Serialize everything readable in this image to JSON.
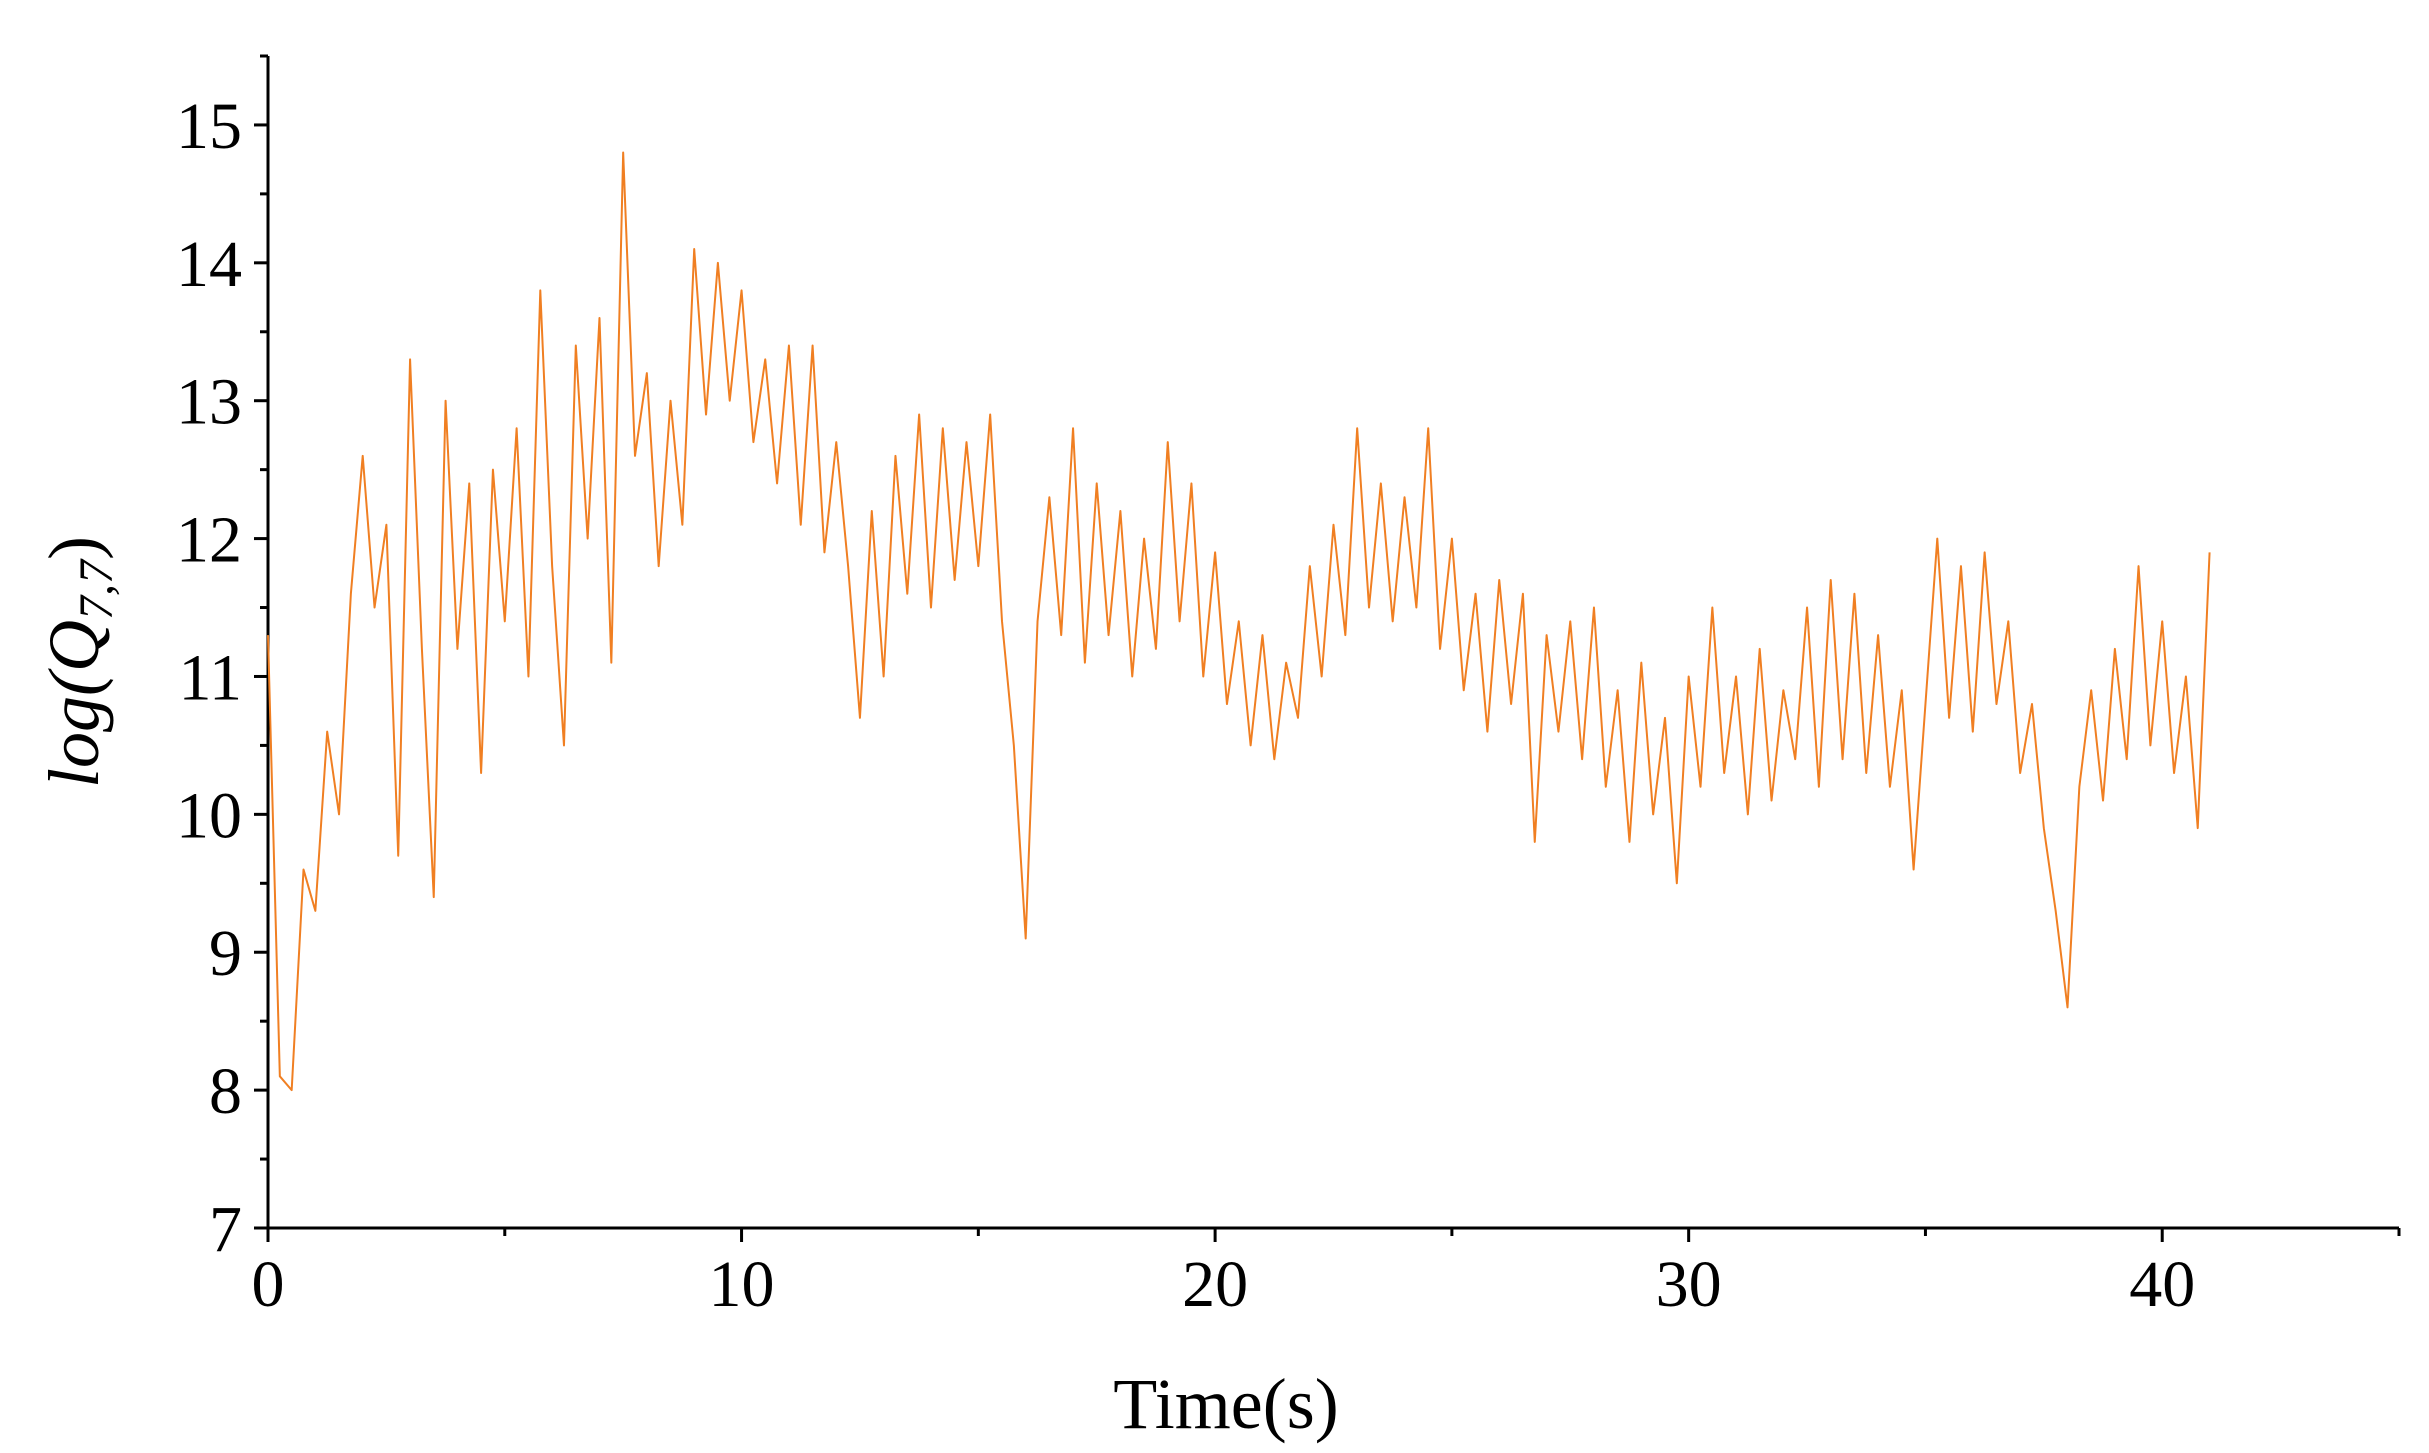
{
  "chart_data": {
    "type": "line",
    "x_label": "Time(s)",
    "y_label": {
      "main": "log(Q",
      "sub": "7,7",
      "close": ")"
    },
    "xlim": [
      0,
      45
    ],
    "xticks": [
      0,
      10,
      20,
      30,
      40
    ],
    "x_minor_ticks": [
      5,
      15,
      25,
      35,
      45
    ],
    "ylim": [
      7,
      15.5
    ],
    "yticks": [
      7,
      8,
      9,
      10,
      11,
      12,
      13,
      14,
      15
    ],
    "y_minor_ticks": [
      7.5,
      8.5,
      9.5,
      10.5,
      11.5,
      12.5,
      13.5,
      14.5,
      15.5
    ],
    "grid": false,
    "series": [
      {
        "color": "#f07f22",
        "x": [
          0,
          0.25,
          0.5,
          0.75,
          1,
          1.25,
          1.5,
          1.75,
          2,
          2.25,
          2.5,
          2.75,
          3,
          3.25,
          3.5,
          3.75,
          4,
          4.25,
          4.5,
          4.75,
          5,
          5.25,
          5.5,
          5.75,
          6,
          6.25,
          6.5,
          6.75,
          7,
          7.25,
          7.5,
          7.75,
          8,
          8.25,
          8.5,
          8.75,
          9,
          9.25,
          9.5,
          9.75,
          10,
          10.25,
          10.5,
          10.75,
          11,
          11.25,
          11.5,
          11.75,
          12,
          12.25,
          12.5,
          12.75,
          13,
          13.25,
          13.5,
          13.75,
          14,
          14.25,
          14.5,
          14.75,
          15,
          15.25,
          15.5,
          15.75,
          16,
          16.25,
          16.5,
          16.75,
          17,
          17.25,
          17.5,
          17.75,
          18,
          18.25,
          18.5,
          18.75,
          19,
          19.25,
          19.5,
          19.75,
          20,
          20.25,
          20.5,
          20.75,
          21,
          21.25,
          21.5,
          21.75,
          22,
          22.25,
          22.5,
          22.75,
          23,
          23.25,
          23.5,
          23.75,
          24,
          24.25,
          24.5,
          24.75,
          25,
          25.25,
          25.5,
          25.75,
          26,
          26.25,
          26.5,
          26.75,
          27,
          27.25,
          27.5,
          27.75,
          28,
          28.25,
          28.5,
          28.75,
          29,
          29.25,
          29.5,
          29.75,
          30,
          30.25,
          30.5,
          30.75,
          31,
          31.25,
          31.5,
          31.75,
          32,
          32.25,
          32.5,
          32.75,
          33,
          33.25,
          33.5,
          33.75,
          34,
          34.25,
          34.5,
          34.75,
          35,
          35.25,
          35.5,
          35.75,
          36,
          36.25,
          36.5,
          36.75,
          37,
          37.25,
          37.5,
          37.75,
          38,
          38.25,
          38.5,
          38.75,
          39,
          39.25,
          39.5,
          39.75,
          40,
          40.25,
          40.5,
          40.75,
          41
        ],
        "values": [
          11.3,
          8.1,
          8.0,
          9.6,
          9.3,
          10.6,
          10.0,
          11.6,
          12.6,
          11.5,
          12.1,
          9.7,
          13.3,
          11.2,
          9.4,
          13.0,
          11.2,
          12.4,
          10.3,
          12.5,
          11.4,
          12.8,
          11.0,
          13.8,
          11.8,
          10.5,
          13.4,
          12.0,
          13.6,
          11.1,
          14.8,
          12.6,
          13.2,
          11.8,
          13.0,
          12.1,
          14.1,
          12.9,
          14.0,
          13.0,
          13.8,
          12.7,
          13.3,
          12.4,
          13.4,
          12.1,
          13.4,
          11.9,
          12.7,
          11.8,
          10.7,
          12.2,
          11.0,
          12.6,
          11.6,
          12.9,
          11.5,
          12.8,
          11.7,
          12.7,
          11.8,
          12.9,
          11.4,
          10.5,
          9.1,
          11.4,
          12.3,
          11.3,
          12.8,
          11.1,
          12.4,
          11.3,
          12.2,
          11.0,
          12.0,
          11.2,
          12.7,
          11.4,
          12.4,
          11.0,
          11.9,
          10.8,
          11.4,
          10.5,
          11.3,
          10.4,
          11.1,
          10.7,
          11.8,
          11.0,
          12.1,
          11.3,
          12.8,
          11.5,
          12.4,
          11.4,
          12.3,
          11.5,
          12.8,
          11.2,
          12.0,
          10.9,
          11.6,
          10.6,
          11.7,
          10.8,
          11.6,
          9.8,
          11.3,
          10.6,
          11.4,
          10.4,
          11.5,
          10.2,
          10.9,
          9.8,
          11.1,
          10.0,
          10.7,
          9.5,
          11.0,
          10.2,
          11.5,
          10.3,
          11.0,
          10.0,
          11.2,
          10.1,
          10.9,
          10.4,
          11.5,
          10.2,
          11.7,
          10.4,
          11.6,
          10.3,
          11.3,
          10.2,
          10.9,
          9.6,
          10.8,
          12.0,
          10.7,
          11.8,
          10.6,
          11.9,
          10.8,
          11.4,
          10.3,
          10.8,
          9.9,
          9.3,
          8.6,
          10.2,
          10.9,
          10.1,
          11.2,
          10.4,
          11.8,
          10.5,
          11.4,
          10.3,
          11.0,
          9.9,
          11.9
        ]
      }
    ]
  }
}
